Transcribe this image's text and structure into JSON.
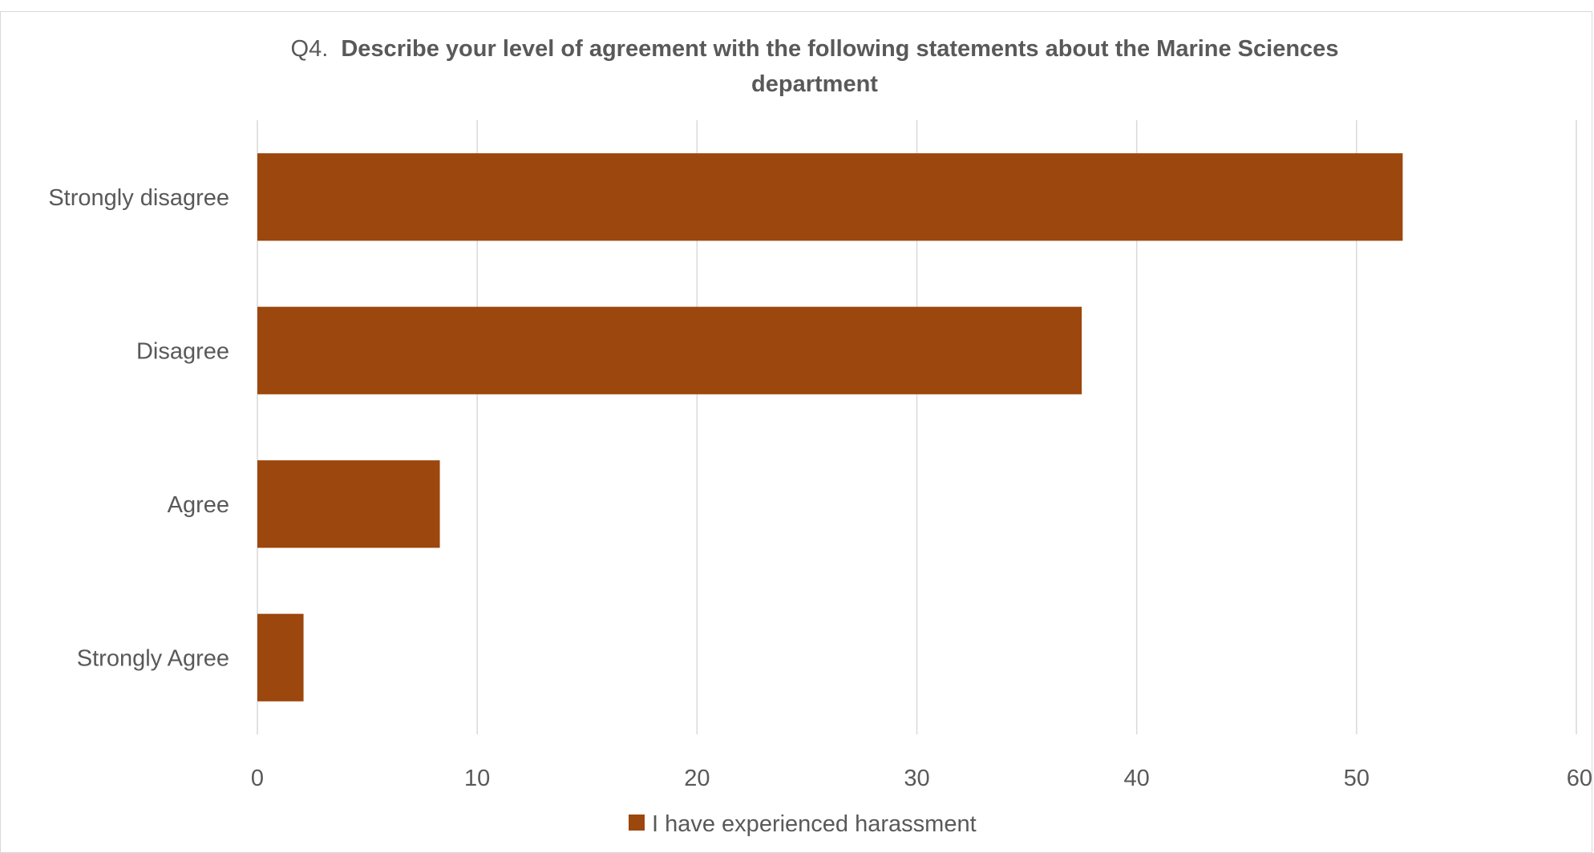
{
  "chart_data": {
    "type": "bar",
    "orientation": "horizontal",
    "title_prefix": "Q4.",
    "title_line1": "Describe your level of agreement with the following statements about the Marine Sciences",
    "title_line2": "department",
    "categories": [
      "Strongly disagree",
      "Disagree",
      "Agree",
      "Strongly Agree"
    ],
    "series": [
      {
        "name": "I have experienced harassment",
        "values": [
          52.1,
          37.5,
          8.3,
          2.1
        ],
        "color": "#9C470D"
      }
    ],
    "xlim": [
      0,
      60
    ],
    "xticks": [
      "0",
      "10",
      "20",
      "30",
      "40",
      "50",
      "60"
    ],
    "grid": true,
    "gridline_color": "#d9d9d9",
    "legend_position": "bottom",
    "xlabel": "",
    "ylabel": ""
  }
}
